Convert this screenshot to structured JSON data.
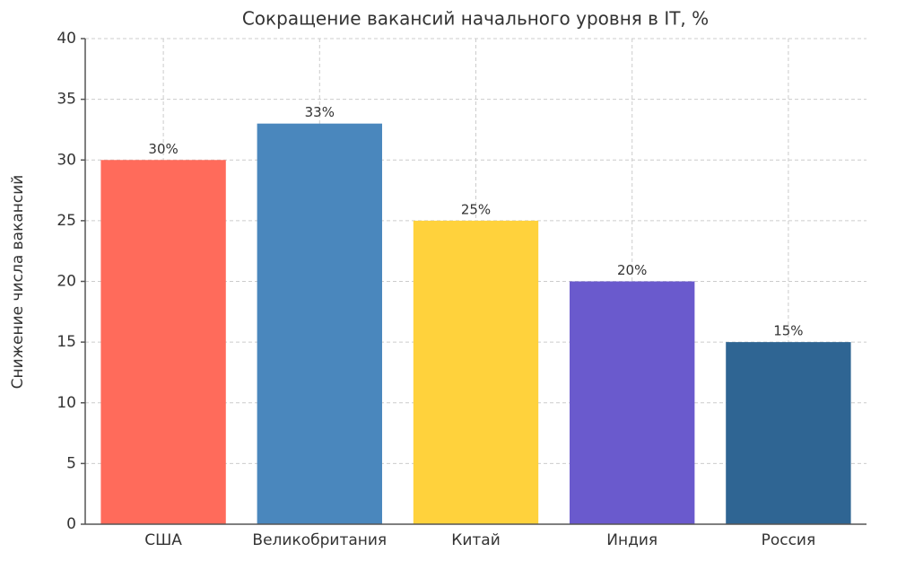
{
  "chart_data": {
    "type": "bar",
    "title": "Сокращение вакансий начального уровня в IT, %",
    "y_label": "Снижение числа вакансий",
    "categories": [
      "США",
      "Великобритания",
      "Китай",
      "Индия",
      "Россия"
    ],
    "values": [
      30,
      33,
      25,
      20,
      15
    ],
    "value_labels": [
      "30%",
      "33%",
      "25%",
      "20%",
      "15%"
    ],
    "colors": [
      "#ff6b5b",
      "#4a87bd",
      "#ffd23c",
      "#6a5acd",
      "#2f6593"
    ],
    "ylim": [
      0,
      40
    ],
    "yticks": [
      0,
      5,
      10,
      15,
      20,
      25,
      30,
      35,
      40
    ],
    "grid": true
  }
}
